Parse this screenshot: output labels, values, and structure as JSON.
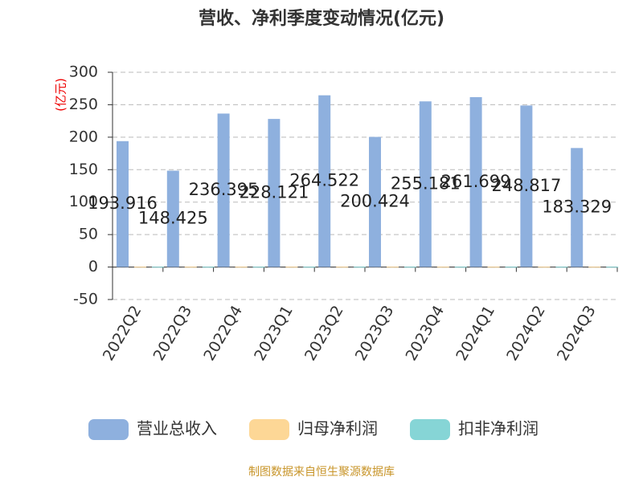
{
  "chart_data": {
    "type": "bar",
    "title": "营收、净利季度变动情况(亿元)",
    "y_label": "(亿元)",
    "source": "制图数据来自恒生聚源数据库",
    "categories": [
      "2022Q2",
      "2022Q3",
      "2022Q4",
      "2023Q1",
      "2023Q2",
      "2023Q3",
      "2023Q4",
      "2024Q1",
      "2024Q2",
      "2024Q3"
    ],
    "series": [
      {
        "name": "营业总收入",
        "color": "#8eb0de",
        "values": [
          193.916,
          148.425,
          236.395,
          228.121,
          264.522,
          200.424,
          255.181,
          261.699,
          248.817,
          183.329
        ]
      },
      {
        "name": "归母净利润",
        "color": "#fdd796",
        "values": [
          0.5,
          0.5,
          0.5,
          0.5,
          0.5,
          0.5,
          0.5,
          0.5,
          0.5,
          0.5
        ]
      },
      {
        "name": "扣非净利润",
        "color": "#86d5d6",
        "values": [
          0.5,
          0.5,
          0.5,
          0.5,
          0.5,
          0.5,
          0.5,
          0.5,
          0.5,
          0.5
        ]
      }
    ],
    "ylim": [
      -50,
      300
    ],
    "yticks": [
      -50,
      0,
      50,
      100,
      150,
      200,
      250,
      300
    ],
    "grid": true
  }
}
